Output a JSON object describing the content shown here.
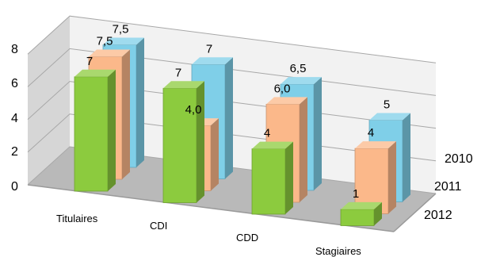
{
  "chart_data": {
    "type": "bar",
    "subtype": "3d-clustered-column",
    "categories": [
      "Titulaires",
      "CDI",
      "CDD",
      "Stagiaires"
    ],
    "series": [
      {
        "name": "2010",
        "values": [
          7.5,
          7,
          6.5,
          5
        ],
        "labels": [
          "7,5",
          "7",
          "6,5",
          "5"
        ],
        "color": "#7FCFE8"
      },
      {
        "name": "2011",
        "values": [
          7.5,
          4.0,
          6.0,
          4
        ],
        "labels": [
          "7,5",
          "4,0",
          "6,0",
          "4"
        ],
        "color": "#FBB88A"
      },
      {
        "name": "2012",
        "values": [
          7,
          7,
          4,
          1
        ],
        "labels": [
          "7",
          "7",
          "4",
          "1"
        ],
        "color": "#8CCB3E"
      }
    ],
    "y_ticks": [
      "0",
      "2",
      "4",
      "6",
      "8"
    ],
    "ylim": [
      0,
      8
    ],
    "depth_labels": [
      "2010",
      "2011",
      "2012"
    ],
    "grid": true,
    "title": "",
    "xlabel": "",
    "ylabel": ""
  }
}
